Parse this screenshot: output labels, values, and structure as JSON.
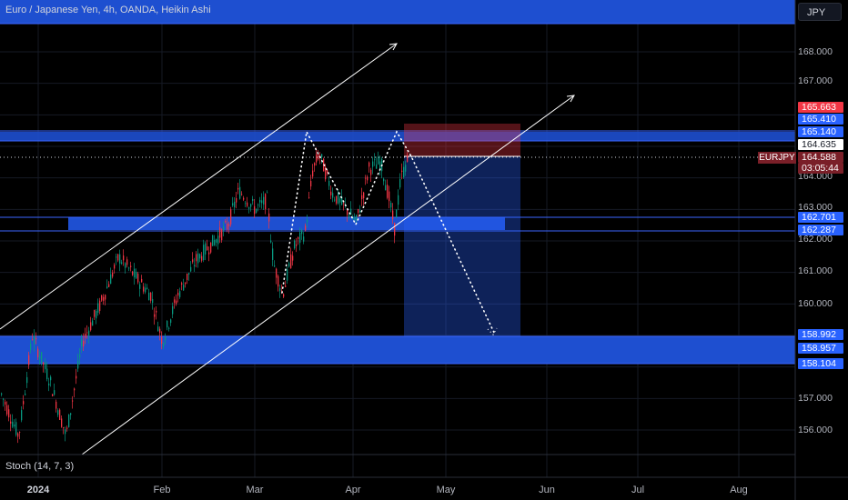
{
  "header": {
    "title": "Euro / Japanese Yen, 4h, OANDA, Heikin Ashi",
    "currency_button": "JPY"
  },
  "chart_data": {
    "type": "candlestick",
    "symbol": "EURJPY",
    "y_ticks": [
      "168.000",
      "167.000",
      "164.000",
      "163.000",
      "162.000",
      "161.000",
      "160.000",
      "157.000",
      "156.000"
    ],
    "x_ticks": [
      "2024",
      "Feb",
      "Mar",
      "Apr",
      "May",
      "Jun",
      "Jul",
      "Aug"
    ],
    "price_labels": {
      "stop": "165.663",
      "zone_top_a": "165.410",
      "zone_top_b": "165.140",
      "entry": "164.635",
      "current": "164.588",
      "countdown": "03:05:44",
      "mid_a": "162.701",
      "mid_b": "162.287",
      "target": "158.992",
      "low_a": "158.957",
      "low_b": "158.104"
    },
    "indicator": "Stoch (14, 7, 3)",
    "colors": {
      "up": "#089981",
      "down": "#f23645",
      "zone": "#1e4fd0",
      "stop_zone": "#f23645",
      "target_zone": "#2962ff"
    }
  }
}
